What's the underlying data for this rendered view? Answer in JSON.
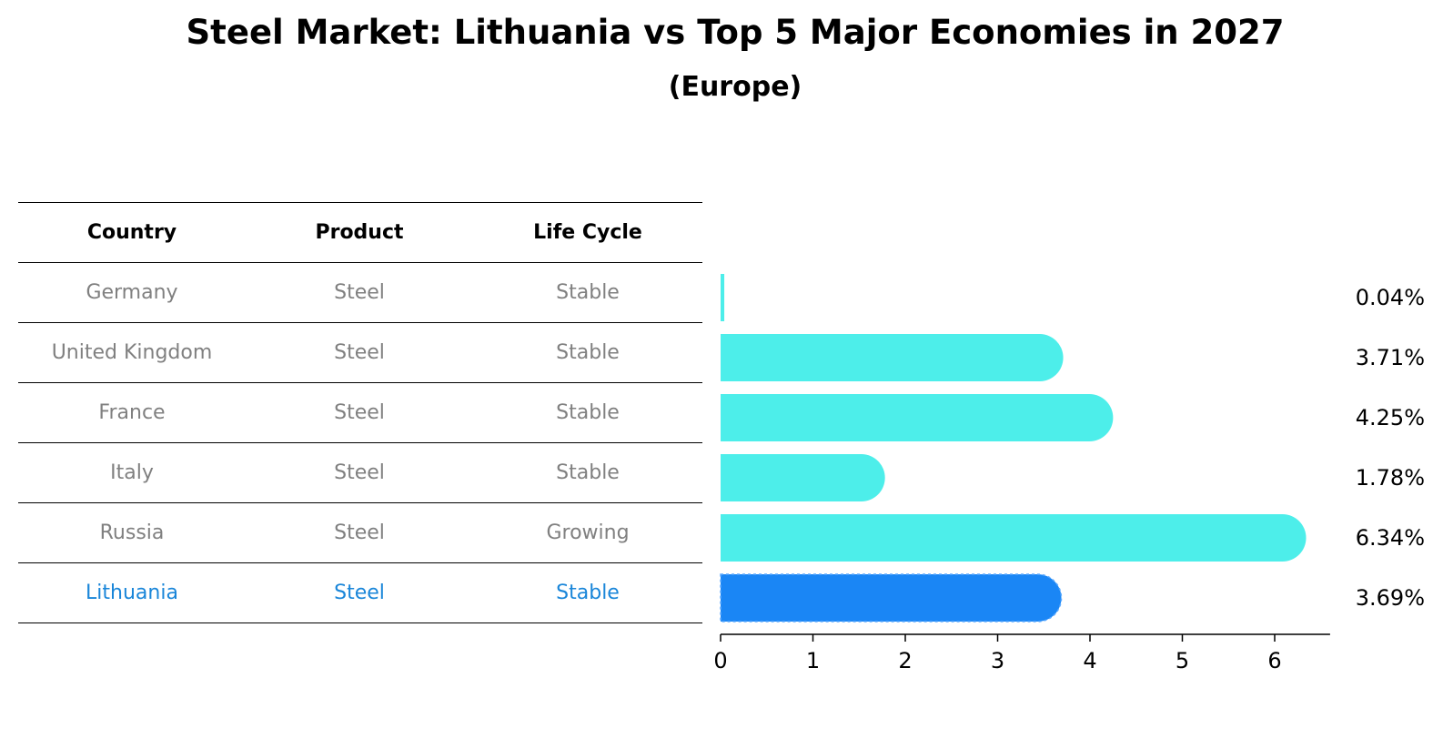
{
  "chart_data": {
    "type": "bar",
    "orientation": "horizontal",
    "title": "Steel Market: Lithuania vs Top 5 Major Economies in 2027",
    "subtitle": "(Europe)",
    "categories": [
      "Germany",
      "United Kingdom",
      "France",
      "Italy",
      "Russia",
      "Lithuania"
    ],
    "values": [
      0.04,
      3.71,
      4.25,
      1.78,
      6.34,
      3.69
    ],
    "value_labels": [
      "0.04%",
      "3.71%",
      "4.25%",
      "1.78%",
      "6.34%",
      "3.69%"
    ],
    "xlim": [
      0,
      6.6
    ],
    "xticks": [
      0,
      1,
      2,
      3,
      4,
      5,
      6
    ],
    "xlabel": "",
    "ylabel": "",
    "highlight": "Lithuania",
    "colors": {
      "bar": "#4deeea",
      "highlight_bar": "#1a86f5",
      "highlight_text": "#1a86d9",
      "muted_text": "#808080"
    }
  },
  "table": {
    "headers": [
      "Country",
      "Product",
      "Life Cycle"
    ],
    "rows": [
      [
        "Germany",
        "Steel",
        "Stable"
      ],
      [
        "United Kingdom",
        "Steel",
        "Stable"
      ],
      [
        "France",
        "Steel",
        "Stable"
      ],
      [
        "Italy",
        "Steel",
        "Stable"
      ],
      [
        "Russia",
        "Steel",
        "Growing"
      ],
      [
        "Lithuania",
        "Steel",
        "Stable"
      ]
    ]
  }
}
